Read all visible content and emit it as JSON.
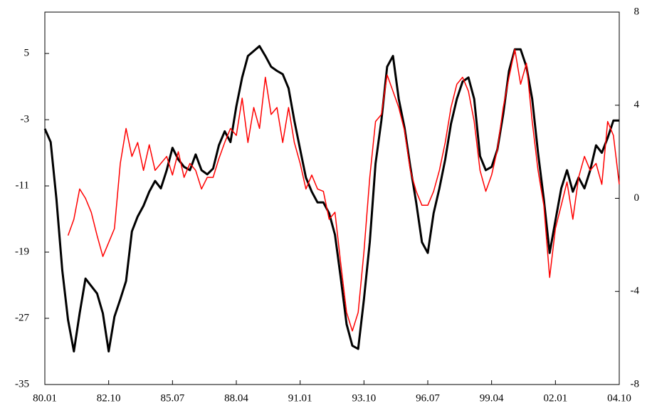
{
  "chart_data": {
    "type": "line",
    "x": [
      0,
      3,
      6,
      9,
      12,
      15,
      18,
      21,
      24,
      27,
      30,
      33,
      36,
      39,
      42,
      45,
      48,
      51,
      54,
      57,
      60,
      63,
      66,
      69,
      72,
      75,
      78,
      81,
      84,
      87,
      90,
      93,
      96,
      99,
      102,
      105,
      108,
      111,
      114,
      117,
      120,
      123,
      126,
      129,
      132,
      135,
      138,
      141,
      144,
      147,
      150,
      153,
      156,
      159,
      162,
      165,
      168,
      171,
      174,
      177,
      180,
      183,
      186,
      189,
      192,
      195,
      198,
      201,
      204,
      207,
      210,
      213,
      216,
      219,
      222,
      225,
      228,
      231,
      234,
      237,
      240,
      243,
      246,
      249,
      252,
      255,
      258,
      261,
      264,
      267,
      270,
      273,
      276,
      279,
      282,
      285,
      288,
      291,
      294,
      297
    ],
    "xlim": [
      0,
      297
    ],
    "xticks": [
      {
        "value": 0,
        "label": "80.01"
      },
      {
        "value": 33,
        "label": "82.10"
      },
      {
        "value": 66,
        "label": "85.07"
      },
      {
        "value": 99,
        "label": "88.04"
      },
      {
        "value": 132,
        "label": "91.01"
      },
      {
        "value": 165,
        "label": "93.10"
      },
      {
        "value": 198,
        "label": "96.07"
      },
      {
        "value": 231,
        "label": "99.04"
      },
      {
        "value": 264,
        "label": "02.01"
      },
      {
        "value": 297,
        "label": "04.10"
      }
    ],
    "ylim": [
      -35,
      10
    ],
    "yticks": [
      -35,
      -27,
      -19,
      -11,
      -3,
      5
    ],
    "y2lim": [
      -8,
      8
    ],
    "y2ticks": [
      -8,
      -4,
      0,
      4,
      8
    ],
    "series": [
      {
        "color": "#000000",
        "axis": "y",
        "values": [
          -4.1,
          -5.7,
          -12.6,
          -21.2,
          -27.2,
          -31,
          -26.4,
          -22.2,
          -23.1,
          -24,
          -26.4,
          -31,
          -26.8,
          -24.7,
          -22.5,
          -16.5,
          -14.7,
          -13.4,
          -11.7,
          -10.4,
          -11.3,
          -9.1,
          -6.4,
          -7.8,
          -8.7,
          -9.1,
          -7.2,
          -9.1,
          -9.6,
          -8.9,
          -6.1,
          -4.4,
          -5.7,
          -1.4,
          2.1,
          4.7,
          5.3,
          5.9,
          4.7,
          3.4,
          2.9,
          2.5,
          0.8,
          -3.1,
          -6.6,
          -10,
          -11.7,
          -13,
          -13,
          -14.3,
          -16.9,
          -22.1,
          -27.7,
          -30.3,
          -30.7,
          -24.7,
          -17.8,
          -8.3,
          -3.1,
          3.4,
          4.7,
          -0.5,
          -4,
          -8.7,
          -13,
          -17.8,
          -19.1,
          -14.3,
          -11.3,
          -7.8,
          -3.5,
          -0.5,
          1.6,
          2.1,
          -0.5,
          -7.4,
          -9.1,
          -8.7,
          -6.6,
          -2.3,
          2.9,
          5.5,
          5.5,
          3.4,
          -0.5,
          -7,
          -12.6,
          -19.1,
          -15.2,
          -11.3,
          -9.1,
          -11.7,
          -10,
          -11.3,
          -9.1,
          -6.1,
          -7,
          -5.2,
          -3.1,
          -3.1
        ]
      },
      {
        "color": "#ff0000",
        "axis": "y2",
        "values": [
          null,
          null,
          null,
          null,
          -1.6,
          -0.9,
          0.4,
          0,
          -0.6,
          -1.6,
          -2.5,
          -1.9,
          -1.3,
          1.5,
          3,
          1.8,
          2.4,
          1.2,
          2.3,
          1.2,
          1.5,
          1.8,
          1,
          2,
          0.9,
          1.5,
          1.2,
          0.4,
          0.9,
          0.9,
          1.7,
          2.4,
          3,
          2.7,
          4.3,
          2.4,
          3.9,
          3,
          5.2,
          3.6,
          3.9,
          2.4,
          3.9,
          2.4,
          1.5,
          0.4,
          1,
          0.4,
          0.3,
          -0.9,
          -0.6,
          -2.8,
          -4.9,
          -5.7,
          -4.9,
          -2.3,
          0.9,
          3.3,
          3.6,
          5.3,
          4.6,
          3.9,
          2.9,
          1.2,
          0.3,
          -0.3,
          -0.3,
          0.3,
          1.2,
          2.4,
          3.9,
          4.9,
          5.2,
          4.6,
          3.3,
          1.2,
          0.3,
          1,
          2.1,
          3.9,
          5.2,
          6.4,
          4.9,
          5.8,
          3.3,
          1.2,
          -0.3,
          -3.4,
          -1.3,
          -0.3,
          0.7,
          -0.9,
          0.9,
          1.8,
          1.2,
          1.5,
          0.6,
          3.3,
          2.7,
          0.6
        ]
      }
    ]
  }
}
